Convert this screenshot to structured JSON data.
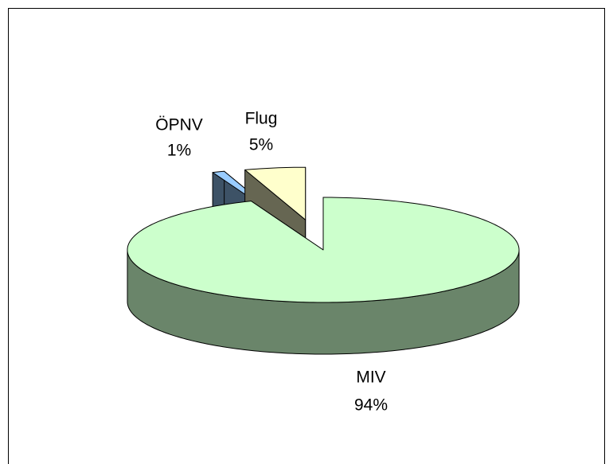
{
  "chart_data": {
    "type": "pie3d",
    "categories": [
      "MIV",
      "ÖPNV",
      "Flug"
    ],
    "values": [
      94,
      1,
      5
    ],
    "value_labels": [
      "94%",
      "1%",
      "5%"
    ],
    "colors": [
      "#ccffcc",
      "#99ccff",
      "#ffffcc"
    ]
  }
}
